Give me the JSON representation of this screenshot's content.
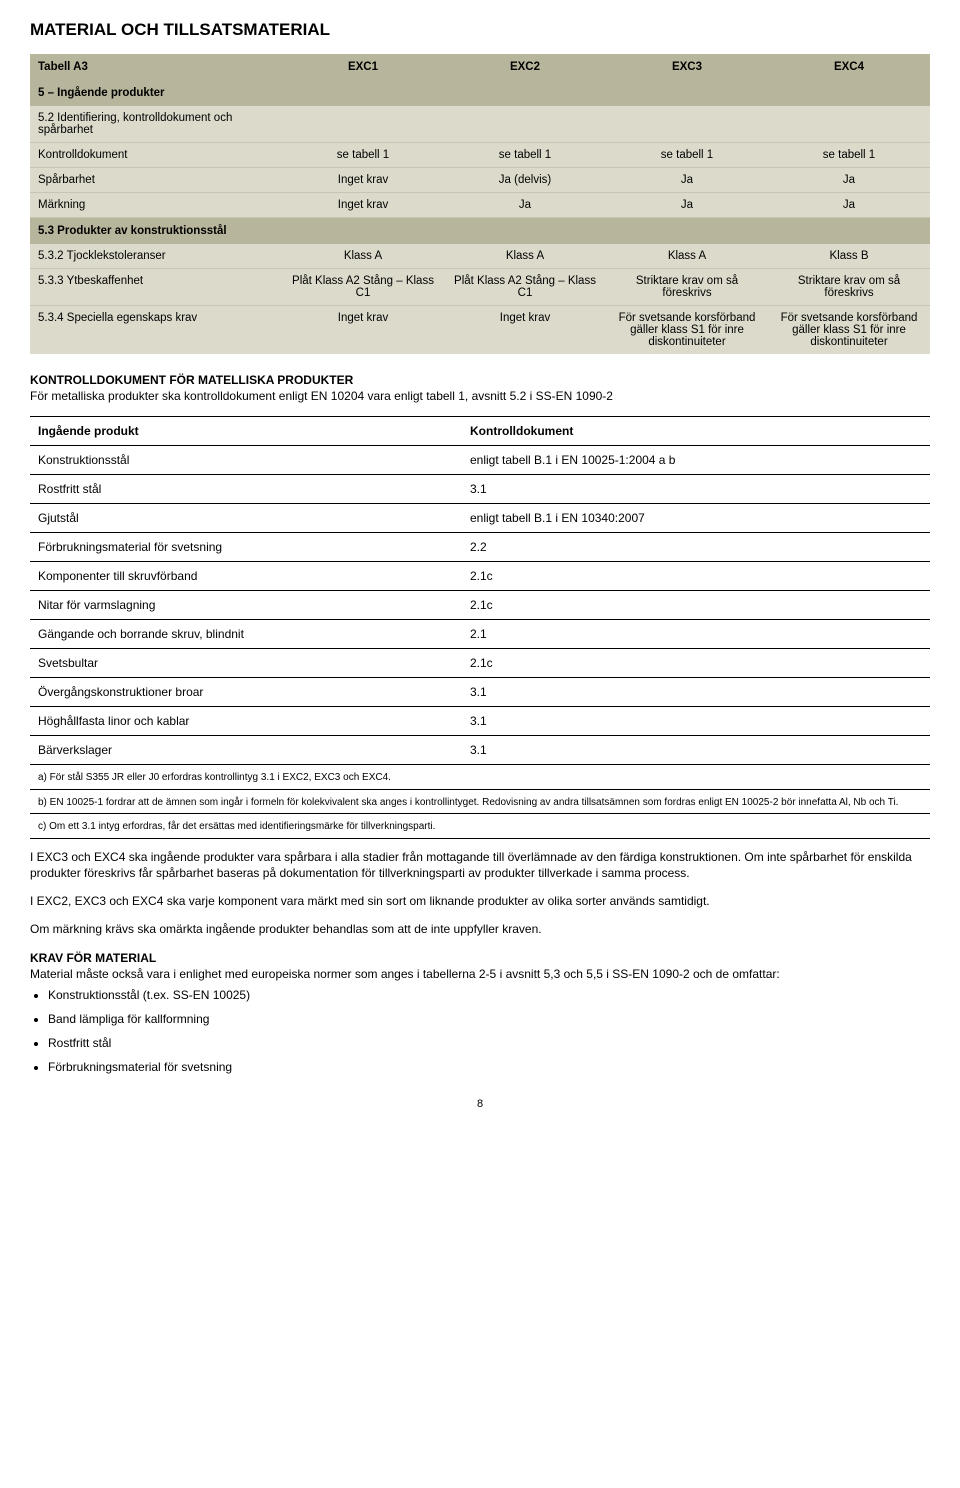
{
  "heading": "MATERIAL OCH TILLSATSMATERIAL",
  "tabA3": {
    "title": "Tabell A3",
    "cols": [
      "EXC1",
      "EXC2",
      "EXC3",
      "EXC4"
    ],
    "sec1": {
      "label": "5 – Ingående produkter",
      "r1": {
        "label": "5.2 Identifiering, kontrolldokument och spårbarhet",
        "c": [
          "",
          "",
          "",
          ""
        ]
      },
      "r2": {
        "label": "Kontrolldokument",
        "c": [
          "se tabell 1",
          "se tabell 1",
          "se tabell 1",
          "se tabell 1"
        ]
      },
      "r3": {
        "label": "Spårbarhet",
        "c": [
          "Inget krav",
          "Ja (delvis)",
          "Ja",
          "Ja"
        ]
      },
      "r4": {
        "label": "Märkning",
        "c": [
          "Inget krav",
          "Ja",
          "Ja",
          "Ja"
        ]
      }
    },
    "sec2": {
      "label": "5.3 Produkter av konstruktionsstål",
      "r1": {
        "label": "5.3.2 Tjocklekstoleranser",
        "c": [
          "Klass A",
          "Klass A",
          "Klass A",
          "Klass B"
        ]
      },
      "r2": {
        "label": "5.3.3 Ytbeskaffenhet",
        "c": [
          "Plåt Klass A2\nStång – Klass C1",
          "Plåt Klass A2\nStång – Klass C1",
          "Striktare krav om så föreskrivs",
          "Striktare krav om så föreskrivs"
        ]
      },
      "r3": {
        "label": "5.3.4 Speciella egenskaps krav",
        "c": [
          "Inget krav",
          "Inget krav",
          "För svetsande korsförband gäller klass S1 för inre diskontinuiteter",
          "För svetsande korsförband gäller klass S1 för inre diskontinuiteter"
        ]
      }
    }
  },
  "kd_title": "KONTROLLDOKUMENT FÖR MATELLISKA PRODUKTER",
  "kd_intro": "För metalliska produkter ska kontrolldokument enligt EN 10204 vara enligt tabell 1, avsnitt 5.2 i SS-EN 1090-2",
  "prod_table": {
    "h1": "Ingående produkt",
    "h2": "Kontrolldokument",
    "rows": [
      {
        "a": "Konstruktionsstål",
        "b": "enligt tabell B.1 i EN 10025-1:2004 a b"
      },
      {
        "a": "Rostfritt stål",
        "b": "3.1"
      },
      {
        "a": "Gjutstål",
        "b": "enligt tabell B.1 i EN 10340:2007"
      },
      {
        "a": "Förbrukningsmaterial för svetsning",
        "b": "2.2"
      },
      {
        "a": "Komponenter till skruvförband",
        "b": "2.1c"
      },
      {
        "a": "Nitar för varmslagning",
        "b": "2.1c"
      },
      {
        "a": "Gängande och borrande skruv, blindnit",
        "b": "2.1"
      },
      {
        "a": "Svetsbultar",
        "b": "2.1c"
      },
      {
        "a": "Övergångskonstruktioner broar",
        "b": "3.1"
      },
      {
        "a": "Höghållfasta linor och kablar",
        "b": "3.1"
      },
      {
        "a": "Bärverkslager",
        "b": "3.1"
      }
    ],
    "notes": [
      "a) För stål S355 JR eller J0 erfordras kontrollintyg 3.1 i EXC2, EXC3 och EXC4.",
      "b) EN 10025-1 fordrar att de ämnen som ingår i formeln för kolekvivalent ska anges i kontrollintyget. Redovisning av andra tillsatsämnen som fordras enligt EN 10025-2 bör innefatta Al, Nb och Ti.",
      "c) Om ett 3.1 intyg erfordras, får det ersättas med identifieringsmärke för tillverkningsparti."
    ]
  },
  "p1": "I EXC3 och EXC4 ska ingående produkter vara spårbara i alla stadier från mottagande till överlämnade av den färdiga konstruktionen. Om inte spårbarhet för enskilda produkter föreskrivs får spårbarhet baseras på dokumentation för tillverkningsparti av produkter tillverkade i samma process.",
  "p2": "I EXC2, EXC3 och EXC4 ska varje komponent vara märkt med sin sort om liknande produkter av olika sorter används samtidigt.",
  "p3": "Om märkning krävs ska omärkta ingående produkter behandlas som att de inte uppfyller kraven.",
  "krav_title": "KRAV FÖR MATERIAL",
  "krav_intro": "Material måste också vara i enlighet med europeiska normer som anges i tabellerna 2-5 i avsnitt 5,3 och 5,5 i SS-EN 1090-2 och de omfattar:",
  "bullets": [
    "Konstruktionsstål (t.ex. SS-EN 10025)",
    "Band lämpliga för kallformning",
    "Rostfritt stål",
    "Förbrukningsmaterial för svetsning"
  ],
  "page": "8"
}
